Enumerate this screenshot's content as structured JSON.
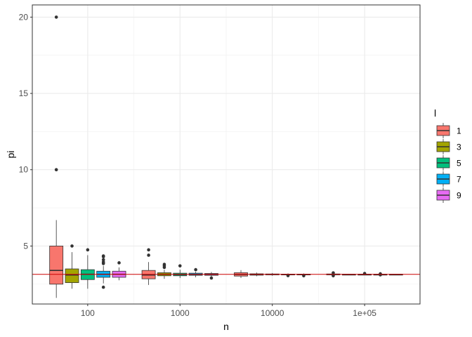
{
  "chart_data": {
    "type": "boxplot",
    "x_scale": "log10",
    "xlabel": "n",
    "ylabel": "pi",
    "ylim": [
      1.2,
      20.8
    ],
    "y_ticks": [
      5,
      10,
      15,
      20
    ],
    "x_ticks": [
      {
        "n": 100,
        "label": "100"
      },
      {
        "n": 1000,
        "label": "1000"
      },
      {
        "n": 10000,
        "label": "10000"
      },
      {
        "n": 100000,
        "label": "1e+05"
      }
    ],
    "reference_line": {
      "y": 3.14159,
      "label": "pi",
      "color": "#cc0000"
    },
    "legend": {
      "title": "l",
      "entries": [
        {
          "label": "1",
          "color": "#F8766D"
        },
        {
          "label": "3",
          "color": "#A3A500"
        },
        {
          "label": "5",
          "color": "#00BF7D"
        },
        {
          "label": "7",
          "color": "#00B0F6"
        },
        {
          "label": "9",
          "color": "#E76BF3"
        }
      ]
    },
    "groups": [
      {
        "n": 100,
        "boxes": [
          {
            "l": "1",
            "min": 1.6,
            "q1": 2.5,
            "median": 3.4,
            "q3": 5.0,
            "max": 6.7,
            "outliers": [
              10.0,
              20.0
            ]
          },
          {
            "l": "3",
            "min": 2.2,
            "q1": 2.6,
            "median": 3.1,
            "q3": 3.5,
            "max": 4.6,
            "outliers": [
              5.0
            ]
          },
          {
            "l": "5",
            "min": 2.2,
            "q1": 2.8,
            "median": 3.15,
            "q3": 3.45,
            "max": 4.4,
            "outliers": [
              4.75
            ]
          },
          {
            "l": "7",
            "min": 2.55,
            "q1": 2.95,
            "median": 3.15,
            "q3": 3.35,
            "max": 3.7,
            "outliers": [
              2.3,
              3.85,
              3.95,
              4.1,
              4.3,
              4.35
            ]
          },
          {
            "l": "9",
            "min": 2.75,
            "q1": 2.95,
            "median": 3.15,
            "q3": 3.35,
            "max": 3.6,
            "outliers": [
              3.9
            ]
          }
        ]
      },
      {
        "n": 1000,
        "boxes": [
          {
            "l": "1",
            "min": 2.45,
            "q1": 2.85,
            "median": 3.1,
            "q3": 3.4,
            "max": 3.95,
            "outliers": [
              4.4,
              4.75
            ]
          },
          {
            "l": "3",
            "min": 2.85,
            "q1": 3.05,
            "median": 3.15,
            "q3": 3.25,
            "max": 3.45,
            "outliers": [
              3.6,
              3.7,
              3.8
            ]
          },
          {
            "l": "5",
            "min": 2.9,
            "q1": 3.05,
            "median": 3.13,
            "q3": 3.22,
            "max": 3.45,
            "outliers": [
              3.7
            ]
          },
          {
            "l": "7",
            "min": 2.95,
            "q1": 3.08,
            "median": 3.14,
            "q3": 3.22,
            "max": 3.32,
            "outliers": [
              3.45
            ]
          },
          {
            "l": "9",
            "min": 2.98,
            "q1": 3.08,
            "median": 3.14,
            "q3": 3.2,
            "max": 3.3,
            "outliers": [
              2.9
            ]
          }
        ]
      },
      {
        "n": 10000,
        "boxes": [
          {
            "l": "1",
            "min": 2.9,
            "q1": 3.03,
            "median": 3.14,
            "q3": 3.25,
            "max": 3.42,
            "outliers": []
          },
          {
            "l": "3",
            "min": 3.02,
            "q1": 3.09,
            "median": 3.14,
            "q3": 3.18,
            "max": 3.26,
            "outliers": []
          },
          {
            "l": "5",
            "min": 3.05,
            "q1": 3.11,
            "median": 3.14,
            "q3": 3.17,
            "max": 3.23,
            "outliers": []
          },
          {
            "l": "7",
            "min": 3.07,
            "q1": 3.12,
            "median": 3.14,
            "q3": 3.16,
            "max": 3.21,
            "outliers": [
              3.06
            ]
          },
          {
            "l": "9",
            "min": 3.08,
            "q1": 3.12,
            "median": 3.14,
            "q3": 3.16,
            "max": 3.2,
            "outliers": [
              3.05
            ]
          }
        ]
      },
      {
        "n": 100000,
        "boxes": [
          {
            "l": "1",
            "min": 3.07,
            "q1": 3.11,
            "median": 3.14,
            "q3": 3.17,
            "max": 3.21,
            "outliers": [
              3.05,
              3.24
            ]
          },
          {
            "l": "3",
            "min": 3.1,
            "q1": 3.13,
            "median": 3.14,
            "q3": 3.15,
            "max": 3.18,
            "outliers": []
          },
          {
            "l": "5",
            "min": 3.11,
            "q1": 3.13,
            "median": 3.14,
            "q3": 3.15,
            "max": 3.17,
            "outliers": [
              3.2
            ]
          },
          {
            "l": "7",
            "min": 3.12,
            "q1": 3.135,
            "median": 3.14,
            "q3": 3.15,
            "max": 3.16,
            "outliers": [
              3.18,
              3.11
            ]
          },
          {
            "l": "9",
            "min": 3.125,
            "q1": 3.135,
            "median": 3.142,
            "q3": 3.15,
            "max": 3.16,
            "outliers": []
          }
        ]
      }
    ]
  }
}
